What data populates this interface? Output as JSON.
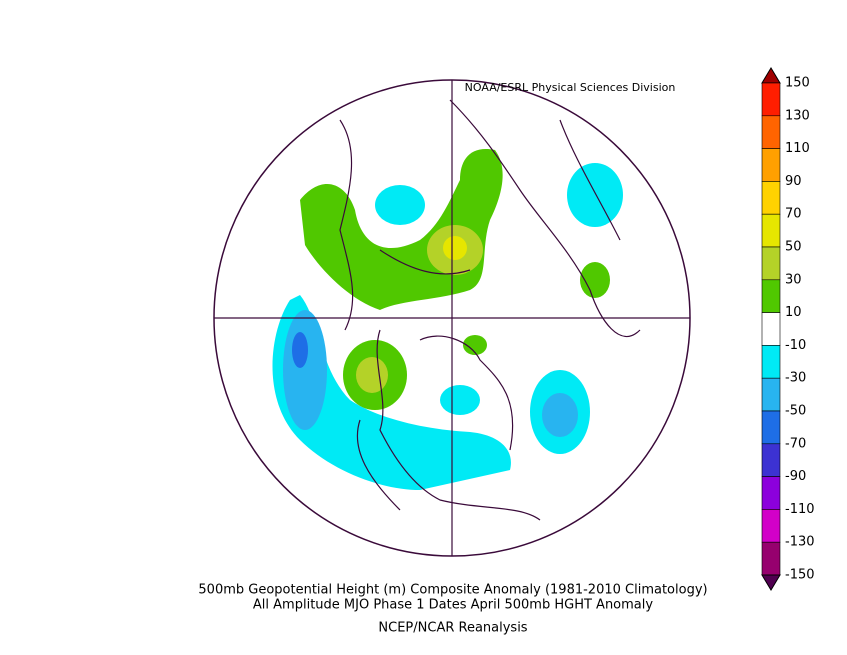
{
  "credit": "NOAA/ESRL Physical Sciences Division",
  "caption": {
    "line1": "500mb Geopotential Height (m) Composite Anomaly (1981-2010 Climatology)",
    "line2": "All Amplitude MJO Phase 1 Dates April 500mb HGHT Anomaly",
    "source": "NCEP/NCAR Reanalysis"
  },
  "colorbar": {
    "labels": [
      150,
      130,
      110,
      90,
      70,
      50,
      30,
      10,
      -10,
      -30,
      -50,
      -70,
      -90,
      -110,
      -130,
      -150
    ],
    "colors": [
      "#a00000",
      "#ff1e00",
      "#ff6400",
      "#ffa000",
      "#ffd200",
      "#e6e600",
      "#b4d228",
      "#50c800",
      "#ffffff",
      "#00eaf5",
      "#28b4f0",
      "#1e6ee6",
      "#3c32d2",
      "#8c00dc",
      "#d200c8",
      "#96006e",
      "#500050"
    ]
  }
}
